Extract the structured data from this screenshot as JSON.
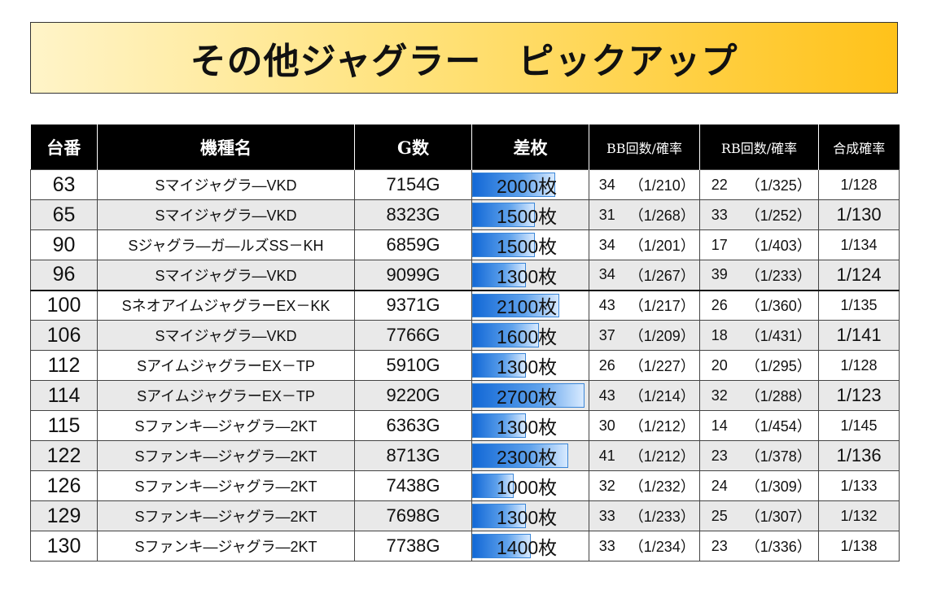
{
  "title": "その他ジャグラー　ピックアップ",
  "headers": {
    "unit": "台番",
    "machine": "機種名",
    "games": "G数",
    "diff": "差枚",
    "bb": "BB回数/確率",
    "rb": "RB回数/確率",
    "combined": "合成確率"
  },
  "rows": [
    {
      "unit": "63",
      "machine": "Sマイジャグラ―VKD",
      "games": "7154G",
      "diff": "2000枚",
      "diff_value": 2000,
      "bb_count": "34",
      "bb_prob": "（1/210）",
      "rb_count": "22",
      "rb_prob": "（1/325）",
      "combined": "1/128"
    },
    {
      "unit": "65",
      "machine": "Sマイジャグラ―VKD",
      "games": "8323G",
      "diff": "1500枚",
      "diff_value": 1500,
      "bb_count": "31",
      "bb_prob": "（1/268）",
      "rb_count": "33",
      "rb_prob": "（1/252）",
      "combined": "1/130"
    },
    {
      "unit": "90",
      "machine": "Sジャグラ―ガ―ルズSS－KH",
      "games": "6859G",
      "diff": "1500枚",
      "diff_value": 1500,
      "bb_count": "34",
      "bb_prob": "（1/201）",
      "rb_count": "17",
      "rb_prob": "（1/403）",
      "combined": "1/134"
    },
    {
      "unit": "96",
      "machine": "Sマイジャグラ―VKD",
      "games": "9099G",
      "diff": "1300枚",
      "diff_value": 1300,
      "bb_count": "34",
      "bb_prob": "（1/267）",
      "rb_count": "39",
      "rb_prob": "（1/233）",
      "combined": "1/124"
    },
    {
      "unit": "100",
      "machine": "SネオアイムジャグラーEX－KK",
      "games": "9371G",
      "diff": "2100枚",
      "diff_value": 2100,
      "bb_count": "43",
      "bb_prob": "（1/217）",
      "rb_count": "26",
      "rb_prob": "（1/360）",
      "combined": "1/135"
    },
    {
      "unit": "106",
      "machine": "Sマイジャグラ―VKD",
      "games": "7766G",
      "diff": "1600枚",
      "diff_value": 1600,
      "bb_count": "37",
      "bb_prob": "（1/209）",
      "rb_count": "18",
      "rb_prob": "（1/431）",
      "combined": "1/141"
    },
    {
      "unit": "112",
      "machine": "SアイムジャグラーEX－TP",
      "games": "5910G",
      "diff": "1300枚",
      "diff_value": 1300,
      "bb_count": "26",
      "bb_prob": "（1/227）",
      "rb_count": "20",
      "rb_prob": "（1/295）",
      "combined": "1/128"
    },
    {
      "unit": "114",
      "machine": "SアイムジャグラーEX－TP",
      "games": "9220G",
      "diff": "2700枚",
      "diff_value": 2700,
      "bb_count": "43",
      "bb_prob": "（1/214）",
      "rb_count": "32",
      "rb_prob": "（1/288）",
      "combined": "1/123"
    },
    {
      "unit": "115",
      "machine": "Sファンキ―ジャグラ―2KT",
      "games": "6363G",
      "diff": "1300枚",
      "diff_value": 1300,
      "bb_count": "30",
      "bb_prob": "（1/212）",
      "rb_count": "14",
      "rb_prob": "（1/454）",
      "combined": "1/145"
    },
    {
      "unit": "122",
      "machine": "Sファンキ―ジャグラ―2KT",
      "games": "8713G",
      "diff": "2300枚",
      "diff_value": 2300,
      "bb_count": "41",
      "bb_prob": "（1/212）",
      "rb_count": "23",
      "rb_prob": "（1/378）",
      "combined": "1/136"
    },
    {
      "unit": "126",
      "machine": "Sファンキ―ジャグラ―2KT",
      "games": "7438G",
      "diff": "1000枚",
      "diff_value": 1000,
      "bb_count": "32",
      "bb_prob": "（1/232）",
      "rb_count": "24",
      "rb_prob": "（1/309）",
      "combined": "1/133"
    },
    {
      "unit": "129",
      "machine": "Sファンキ―ジャグラ―2KT",
      "games": "7698G",
      "diff": "1300枚",
      "diff_value": 1300,
      "bb_count": "33",
      "bb_prob": "（1/233）",
      "rb_count": "25",
      "rb_prob": "（1/307）",
      "combined": "1/132"
    },
    {
      "unit": "130",
      "machine": "Sファンキ―ジャグラ―2KT",
      "games": "7738G",
      "diff": "1400枚",
      "diff_value": 1400,
      "bb_count": "33",
      "bb_prob": "（1/234）",
      "rb_count": "23",
      "rb_prob": "（1/336）",
      "combined": "1/138"
    }
  ]
}
